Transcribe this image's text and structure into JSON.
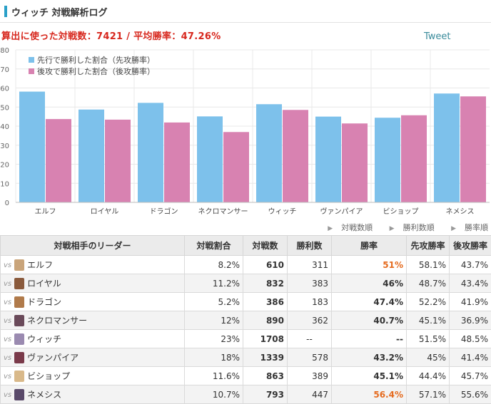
{
  "header": {
    "title": "ウィッチ 対戦解析ログ"
  },
  "stats_line": "算出に使った対戦数：7421 / 平均勝率：47.26%",
  "tweet_label": "Tweet",
  "sort_links": [
    "対戦数順",
    "勝利数順",
    "勝率順"
  ],
  "table": {
    "headers": {
      "leader": "対戦相手のリーダー",
      "share": "対戦割合",
      "matches": "対戦数",
      "wins": "勝利数",
      "winrate": "勝率",
      "first": "先攻勝率",
      "second": "後攻勝率"
    },
    "vs_label": "vs",
    "rows": [
      {
        "leader": "エルフ",
        "share": "8.2%",
        "matches": "610",
        "wins": "311",
        "winrate": "51%",
        "first": "58.1%",
        "second": "43.7%",
        "highlight": true,
        "avatar_color": "#c9a47a"
      },
      {
        "leader": "ロイヤル",
        "share": "11.2%",
        "matches": "832",
        "wins": "383",
        "winrate": "46%",
        "first": "48.7%",
        "second": "43.4%",
        "highlight": false,
        "avatar_color": "#8a5a3c"
      },
      {
        "leader": "ドラゴン",
        "share": "5.2%",
        "matches": "386",
        "wins": "183",
        "winrate": "47.4%",
        "first": "52.2%",
        "second": "41.9%",
        "highlight": false,
        "avatar_color": "#b07a4a"
      },
      {
        "leader": "ネクロマンサー",
        "share": "12%",
        "matches": "890",
        "wins": "362",
        "winrate": "40.7%",
        "first": "45.1%",
        "second": "36.9%",
        "highlight": false,
        "avatar_color": "#6a4a5a"
      },
      {
        "leader": "ウィッチ",
        "share": "23%",
        "matches": "1708",
        "wins": "--",
        "winrate": "--",
        "first": "51.5%",
        "second": "48.5%",
        "highlight": false,
        "avatar_color": "#9a8ab0"
      },
      {
        "leader": "ヴァンパイア",
        "share": "18%",
        "matches": "1339",
        "wins": "578",
        "winrate": "43.2%",
        "first": "45%",
        "second": "41.4%",
        "highlight": false,
        "avatar_color": "#7a3a4a"
      },
      {
        "leader": "ビショップ",
        "share": "11.6%",
        "matches": "863",
        "wins": "389",
        "winrate": "45.1%",
        "first": "44.4%",
        "second": "45.7%",
        "highlight": false,
        "avatar_color": "#d9b98a"
      },
      {
        "leader": "ネメシス",
        "share": "10.7%",
        "matches": "793",
        "wins": "447",
        "winrate": "56.4%",
        "first": "57.1%",
        "second": "55.6%",
        "highlight": true,
        "avatar_color": "#5a4a6a"
      }
    ]
  },
  "colors": {
    "first": "#7dc1eb",
    "second": "#d882b1",
    "grid": "#e8e8e8",
    "highlight": "#e56b1f"
  },
  "chart_data": {
    "type": "bar",
    "categories": [
      "エルフ",
      "ロイヤル",
      "ドラゴン",
      "ネクロマンサー",
      "ウィッチ",
      "ヴァンパイア",
      "ビショップ",
      "ネメシス"
    ],
    "series": [
      {
        "name": "先行で勝利した割合（先攻勝率）",
        "values": [
          58.1,
          48.7,
          52.2,
          45.1,
          51.5,
          45,
          44.4,
          57.1
        ],
        "color": "#7dc1eb"
      },
      {
        "name": "後攻で勝利した割合（後攻勝率）",
        "values": [
          43.7,
          43.4,
          41.9,
          36.9,
          48.5,
          41.4,
          45.7,
          55.6
        ],
        "color": "#d882b1"
      }
    ],
    "yticks": [
      0,
      10,
      20,
      30,
      40,
      50,
      60,
      70,
      80
    ],
    "ylim": [
      0,
      80
    ],
    "grid": true,
    "legend_position": "top-left"
  }
}
